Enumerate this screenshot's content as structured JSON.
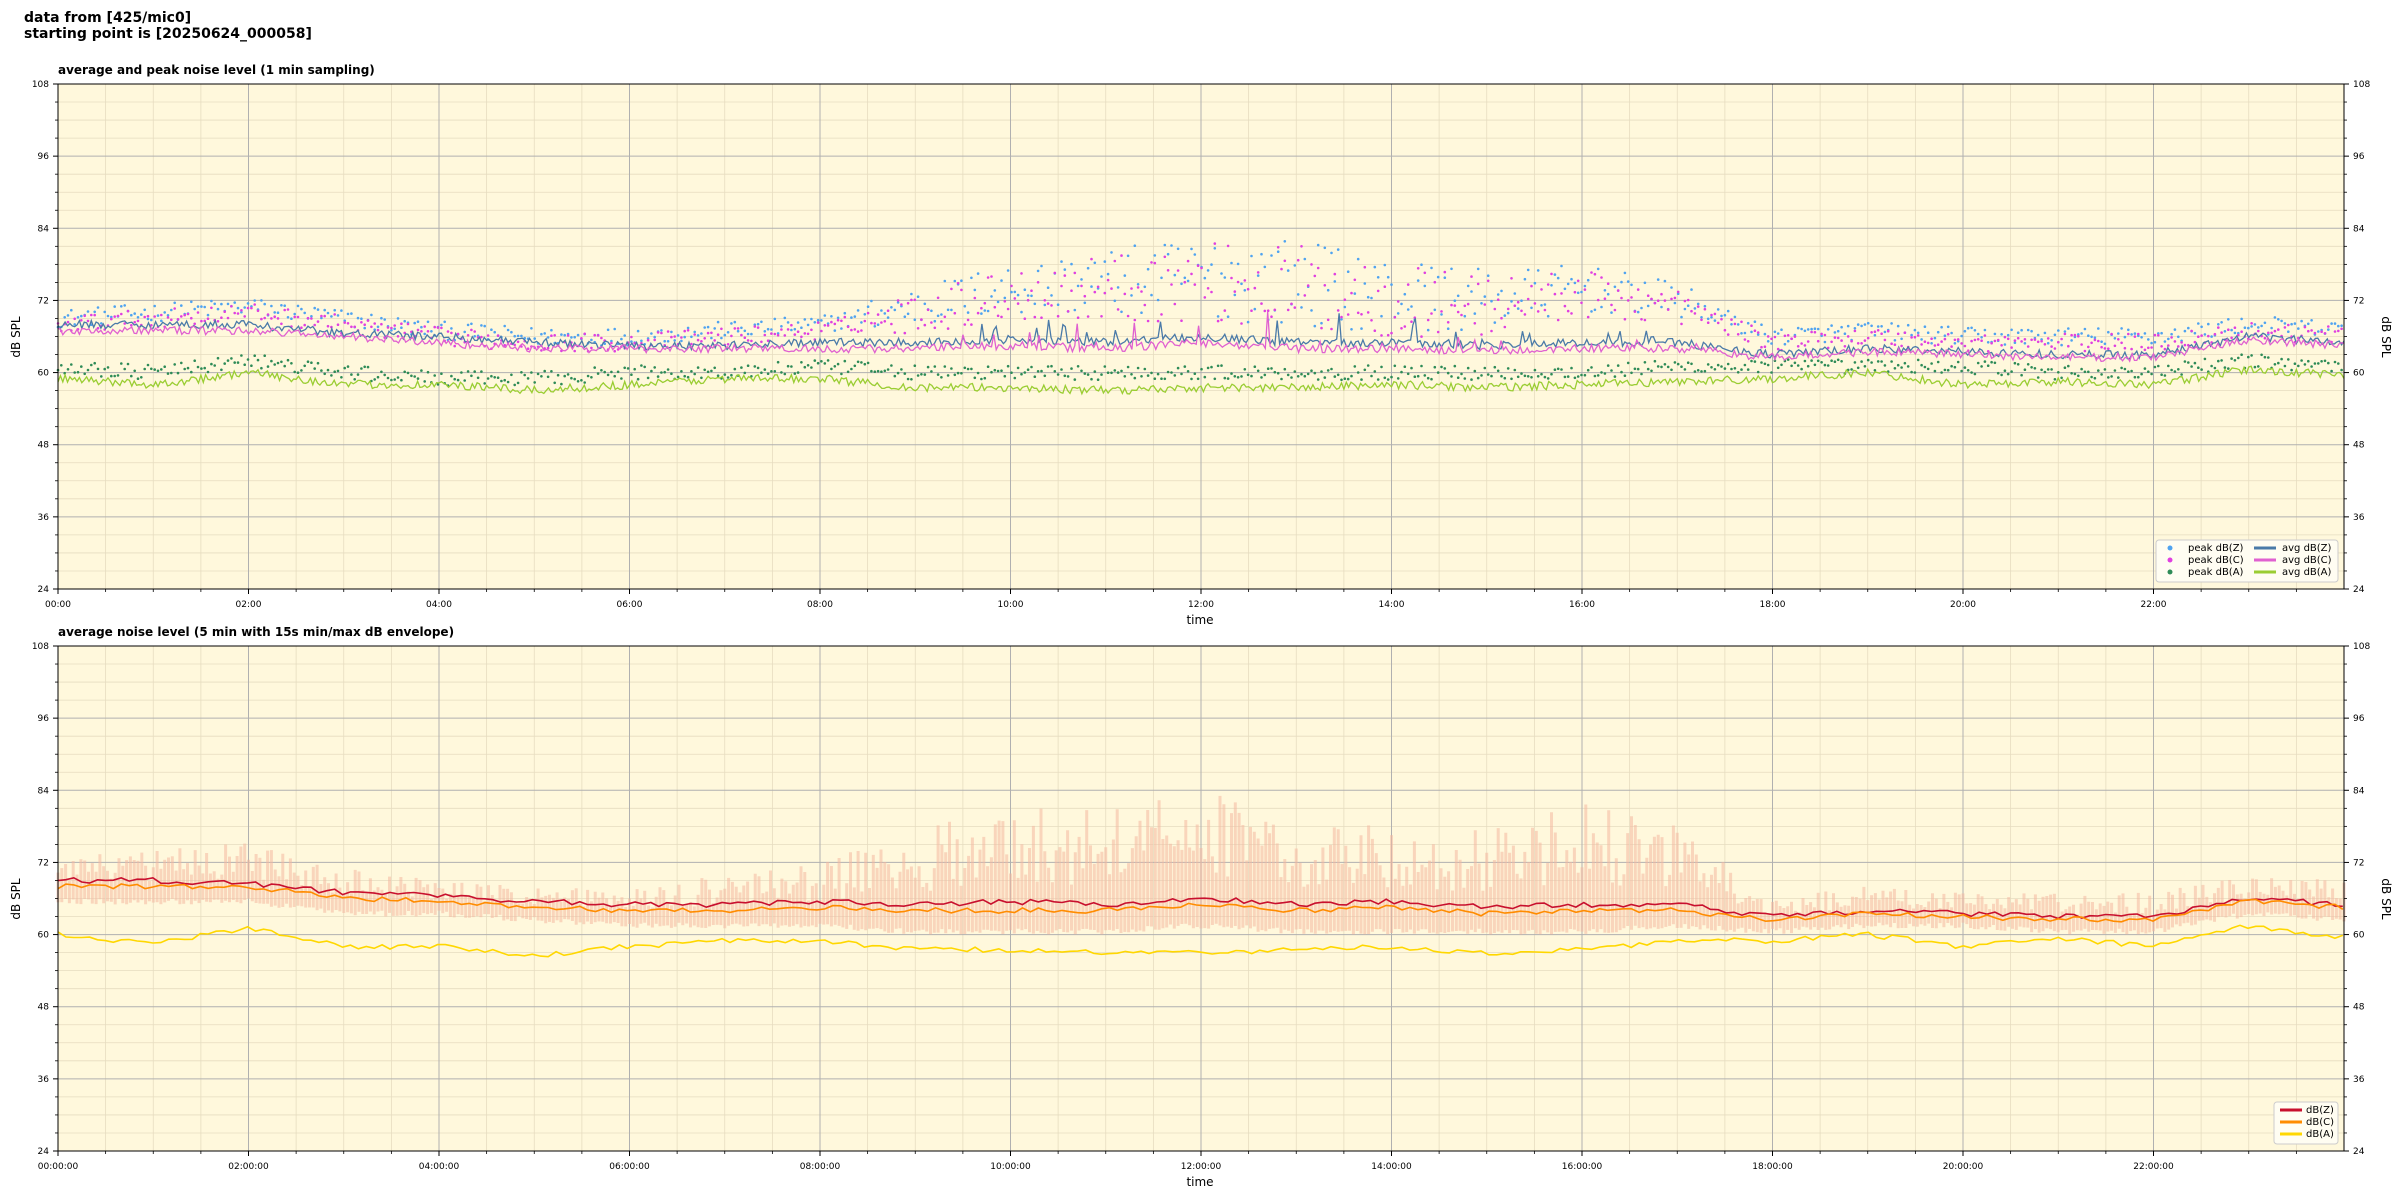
{
  "header": {
    "line1": "data from [425/mic0]",
    "line2": "starting point is [20250624_000058]"
  },
  "colors": {
    "plot_bg": "#fff8dc",
    "grid_major": "#b0b0b0",
    "grid_minor": "#e6dcc0",
    "peak_z": "#4fa3f0",
    "peak_c": "#e040e0",
    "peak_a": "#2e8b57",
    "avg_z": "#4a7aa8",
    "avg_c": "#e060d0",
    "avg_a": "#9acd32",
    "env_z": "#c8102e",
    "env_c": "#ff8c00",
    "env_a": "#ffd700",
    "envelope_fill": "#f4b8a0"
  },
  "chart_data": [
    {
      "type": "line",
      "title": "average and peak noise level (1 min sampling)",
      "xlabel": "time",
      "ylabel": "dB SPL",
      "ylim": [
        24,
        108
      ],
      "xlim_hours": [
        0,
        24
      ],
      "yticks": [
        "24",
        "36",
        "48",
        "60",
        "72",
        "84",
        "96",
        "108"
      ],
      "xticks": [
        "00:00",
        "02:00",
        "04:00",
        "06:00",
        "08:00",
        "10:00",
        "12:00",
        "14:00",
        "16:00",
        "18:00",
        "20:00",
        "22:00"
      ],
      "grid": true,
      "legend_position": "bottom-right",
      "series": [
        {
          "name": "peak dB(Z)",
          "style": "dots",
          "x": [
            0,
            1,
            2,
            3,
            4,
            5,
            6,
            7,
            8,
            9,
            10,
            11,
            12,
            13,
            14,
            15,
            16,
            17,
            18,
            19,
            20,
            21,
            22,
            23,
            24
          ],
          "values": [
            69,
            70,
            71,
            69,
            67,
            66,
            66,
            67,
            68,
            71,
            74,
            75,
            76,
            75,
            73,
            72,
            74,
            72,
            66,
            67,
            66,
            66,
            66,
            68,
            67
          ]
        },
        {
          "name": "peak dB(C)",
          "style": "dots",
          "x": [
            0,
            1,
            2,
            3,
            4,
            5,
            6,
            7,
            8,
            9,
            10,
            11,
            12,
            13,
            14,
            15,
            16,
            17,
            18,
            19,
            20,
            21,
            22,
            23,
            24
          ],
          "values": [
            68,
            69,
            70,
            68,
            66,
            65,
            65,
            66,
            67,
            70,
            73,
            74,
            75,
            74,
            72,
            71,
            73,
            71,
            65,
            66,
            65,
            65,
            65,
            67,
            66
          ]
        },
        {
          "name": "peak dB(A)",
          "style": "dots",
          "x": [
            0,
            1,
            2,
            3,
            4,
            5,
            6,
            7,
            8,
            9,
            10,
            11,
            12,
            13,
            14,
            15,
            16,
            17,
            18,
            19,
            20,
            21,
            22,
            23,
            24
          ],
          "values": [
            61,
            60,
            62,
            60,
            59,
            59,
            60,
            60,
            61,
            60,
            60,
            60,
            60,
            60,
            60,
            60,
            60,
            61,
            61,
            61,
            61,
            60,
            60,
            62,
            61
          ]
        },
        {
          "name": "avg dB(Z)",
          "style": "line",
          "x": [
            0,
            1,
            2,
            3,
            4,
            5,
            6,
            7,
            8,
            9,
            10,
            11,
            12,
            13,
            14,
            15,
            16,
            17,
            18,
            19,
            20,
            21,
            22,
            23,
            24
          ],
          "values": [
            68,
            68,
            68,
            66.5,
            66,
            65,
            64.5,
            64.5,
            65,
            65,
            65.5,
            65,
            66,
            65,
            65,
            64.5,
            65,
            65,
            63,
            64,
            63.5,
            63,
            63,
            66,
            65
          ]
        },
        {
          "name": "avg dB(C)",
          "style": "line",
          "x": [
            0,
            1,
            2,
            3,
            4,
            5,
            6,
            7,
            8,
            9,
            10,
            11,
            12,
            13,
            14,
            15,
            16,
            17,
            18,
            19,
            20,
            21,
            22,
            23,
            24
          ],
          "values": [
            67,
            67,
            67,
            66,
            65,
            64,
            64,
            64,
            64,
            64,
            64.5,
            64,
            65,
            64,
            64,
            63.5,
            64,
            64,
            62.5,
            63.5,
            63,
            62.5,
            62.5,
            65.5,
            64.5
          ]
        },
        {
          "name": "avg dB(A)",
          "style": "line",
          "x": [
            0,
            1,
            2,
            3,
            4,
            5,
            6,
            7,
            8,
            9,
            10,
            11,
            12,
            13,
            14,
            15,
            16,
            17,
            18,
            19,
            20,
            21,
            22,
            23,
            24
          ],
          "values": [
            59,
            58,
            60,
            58,
            58,
            57,
            58,
            59,
            59,
            57.5,
            57.5,
            57,
            57.5,
            57.5,
            58,
            57.5,
            58,
            58.5,
            59,
            60,
            58,
            58.5,
            58,
            60.5,
            59.5
          ]
        }
      ]
    },
    {
      "type": "area",
      "title": "average noise level (5 min with 15s min/max dB envelope)",
      "xlabel": "time",
      "ylabel": "dB SPL",
      "ylim": [
        24,
        108
      ],
      "xlim_hours": [
        0,
        24
      ],
      "yticks": [
        "24",
        "36",
        "48",
        "60",
        "72",
        "84",
        "96",
        "108"
      ],
      "xticks": [
        "00:00:00",
        "02:00:00",
        "04:00:00",
        "06:00:00",
        "08:00:00",
        "10:00:00",
        "12:00:00",
        "14:00:00",
        "16:00:00",
        "18:00:00",
        "20:00:00",
        "22:00:00"
      ],
      "grid": true,
      "legend_position": "bottom-right",
      "envelope": {
        "x": [
          0,
          1,
          2,
          3,
          4,
          5,
          6,
          7,
          8,
          9,
          10,
          11,
          12,
          13,
          14,
          15,
          16,
          17,
          18,
          19,
          20,
          21,
          22,
          23,
          24
        ],
        "max": [
          73,
          74,
          76,
          71,
          69,
          68,
          68,
          70,
          72,
          78,
          81,
          82,
          84,
          80,
          79,
          78,
          82,
          78,
          67,
          68,
          67,
          67,
          67,
          70,
          69
        ],
        "min": [
          66,
          66,
          66,
          64,
          64,
          63,
          62,
          62,
          62,
          61,
          61,
          61,
          62,
          61,
          61,
          61,
          61,
          62,
          61,
          62,
          62,
          61,
          61,
          64,
          63
        ]
      },
      "series": [
        {
          "name": "dB(Z)",
          "x": [
            0,
            1,
            2,
            3,
            4,
            5,
            6,
            7,
            8,
            9,
            10,
            11,
            12,
            13,
            14,
            15,
            16,
            17,
            18,
            19,
            20,
            21,
            22,
            23,
            24
          ],
          "values": [
            69,
            69,
            68.5,
            67,
            66.5,
            65.5,
            65,
            65,
            65.5,
            65,
            65.5,
            65,
            66,
            65,
            65.5,
            64.5,
            65,
            65,
            63,
            64,
            63.5,
            63,
            63,
            66,
            65
          ]
        },
        {
          "name": "dB(C)",
          "x": [
            0,
            1,
            2,
            3,
            4,
            5,
            6,
            7,
            8,
            9,
            10,
            11,
            12,
            13,
            14,
            15,
            16,
            17,
            18,
            19,
            20,
            21,
            22,
            23,
            24
          ],
          "values": [
            68,
            68,
            68,
            66,
            65.5,
            64.5,
            64,
            64,
            64.5,
            64,
            64,
            64,
            65,
            64,
            64.5,
            63.5,
            64,
            64,
            62.5,
            63.5,
            63,
            62.5,
            62.5,
            65.5,
            64.5
          ]
        },
        {
          "name": "dB(A)",
          "x": [
            0,
            1,
            2,
            3,
            4,
            5,
            6,
            7,
            8,
            9,
            10,
            11,
            12,
            13,
            14,
            15,
            16,
            17,
            18,
            19,
            20,
            21,
            22,
            23,
            24
          ],
          "values": [
            60,
            58.5,
            61,
            58,
            58,
            56.5,
            58,
            59,
            59,
            57.5,
            57.5,
            57,
            57,
            57.5,
            58,
            57,
            57.5,
            59,
            59,
            60,
            58,
            59.5,
            58,
            61.5,
            59.5
          ]
        }
      ]
    }
  ]
}
